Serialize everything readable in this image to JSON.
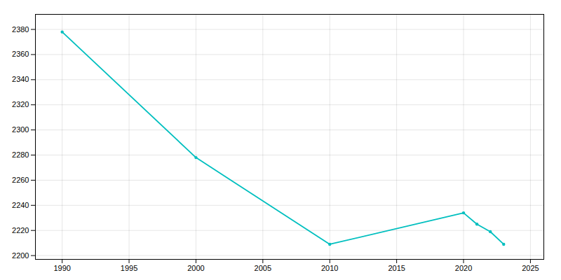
{
  "chart_data": {
    "type": "line",
    "x": [
      1990,
      2000,
      2010,
      2020,
      2021,
      2022,
      2023
    ],
    "values": [
      2378,
      2278,
      2209,
      2234,
      2225,
      2219,
      2209
    ],
    "color": "#00BFBF",
    "marker": "circle",
    "xlim": [
      1988,
      2026
    ],
    "ylim": [
      2197,
      2392
    ],
    "xticks": [
      1990,
      1995,
      2000,
      2005,
      2010,
      2015,
      2020,
      2025
    ],
    "yticks": [
      2200,
      2220,
      2240,
      2260,
      2280,
      2300,
      2320,
      2340,
      2360,
      2380
    ],
    "grid": true
  }
}
